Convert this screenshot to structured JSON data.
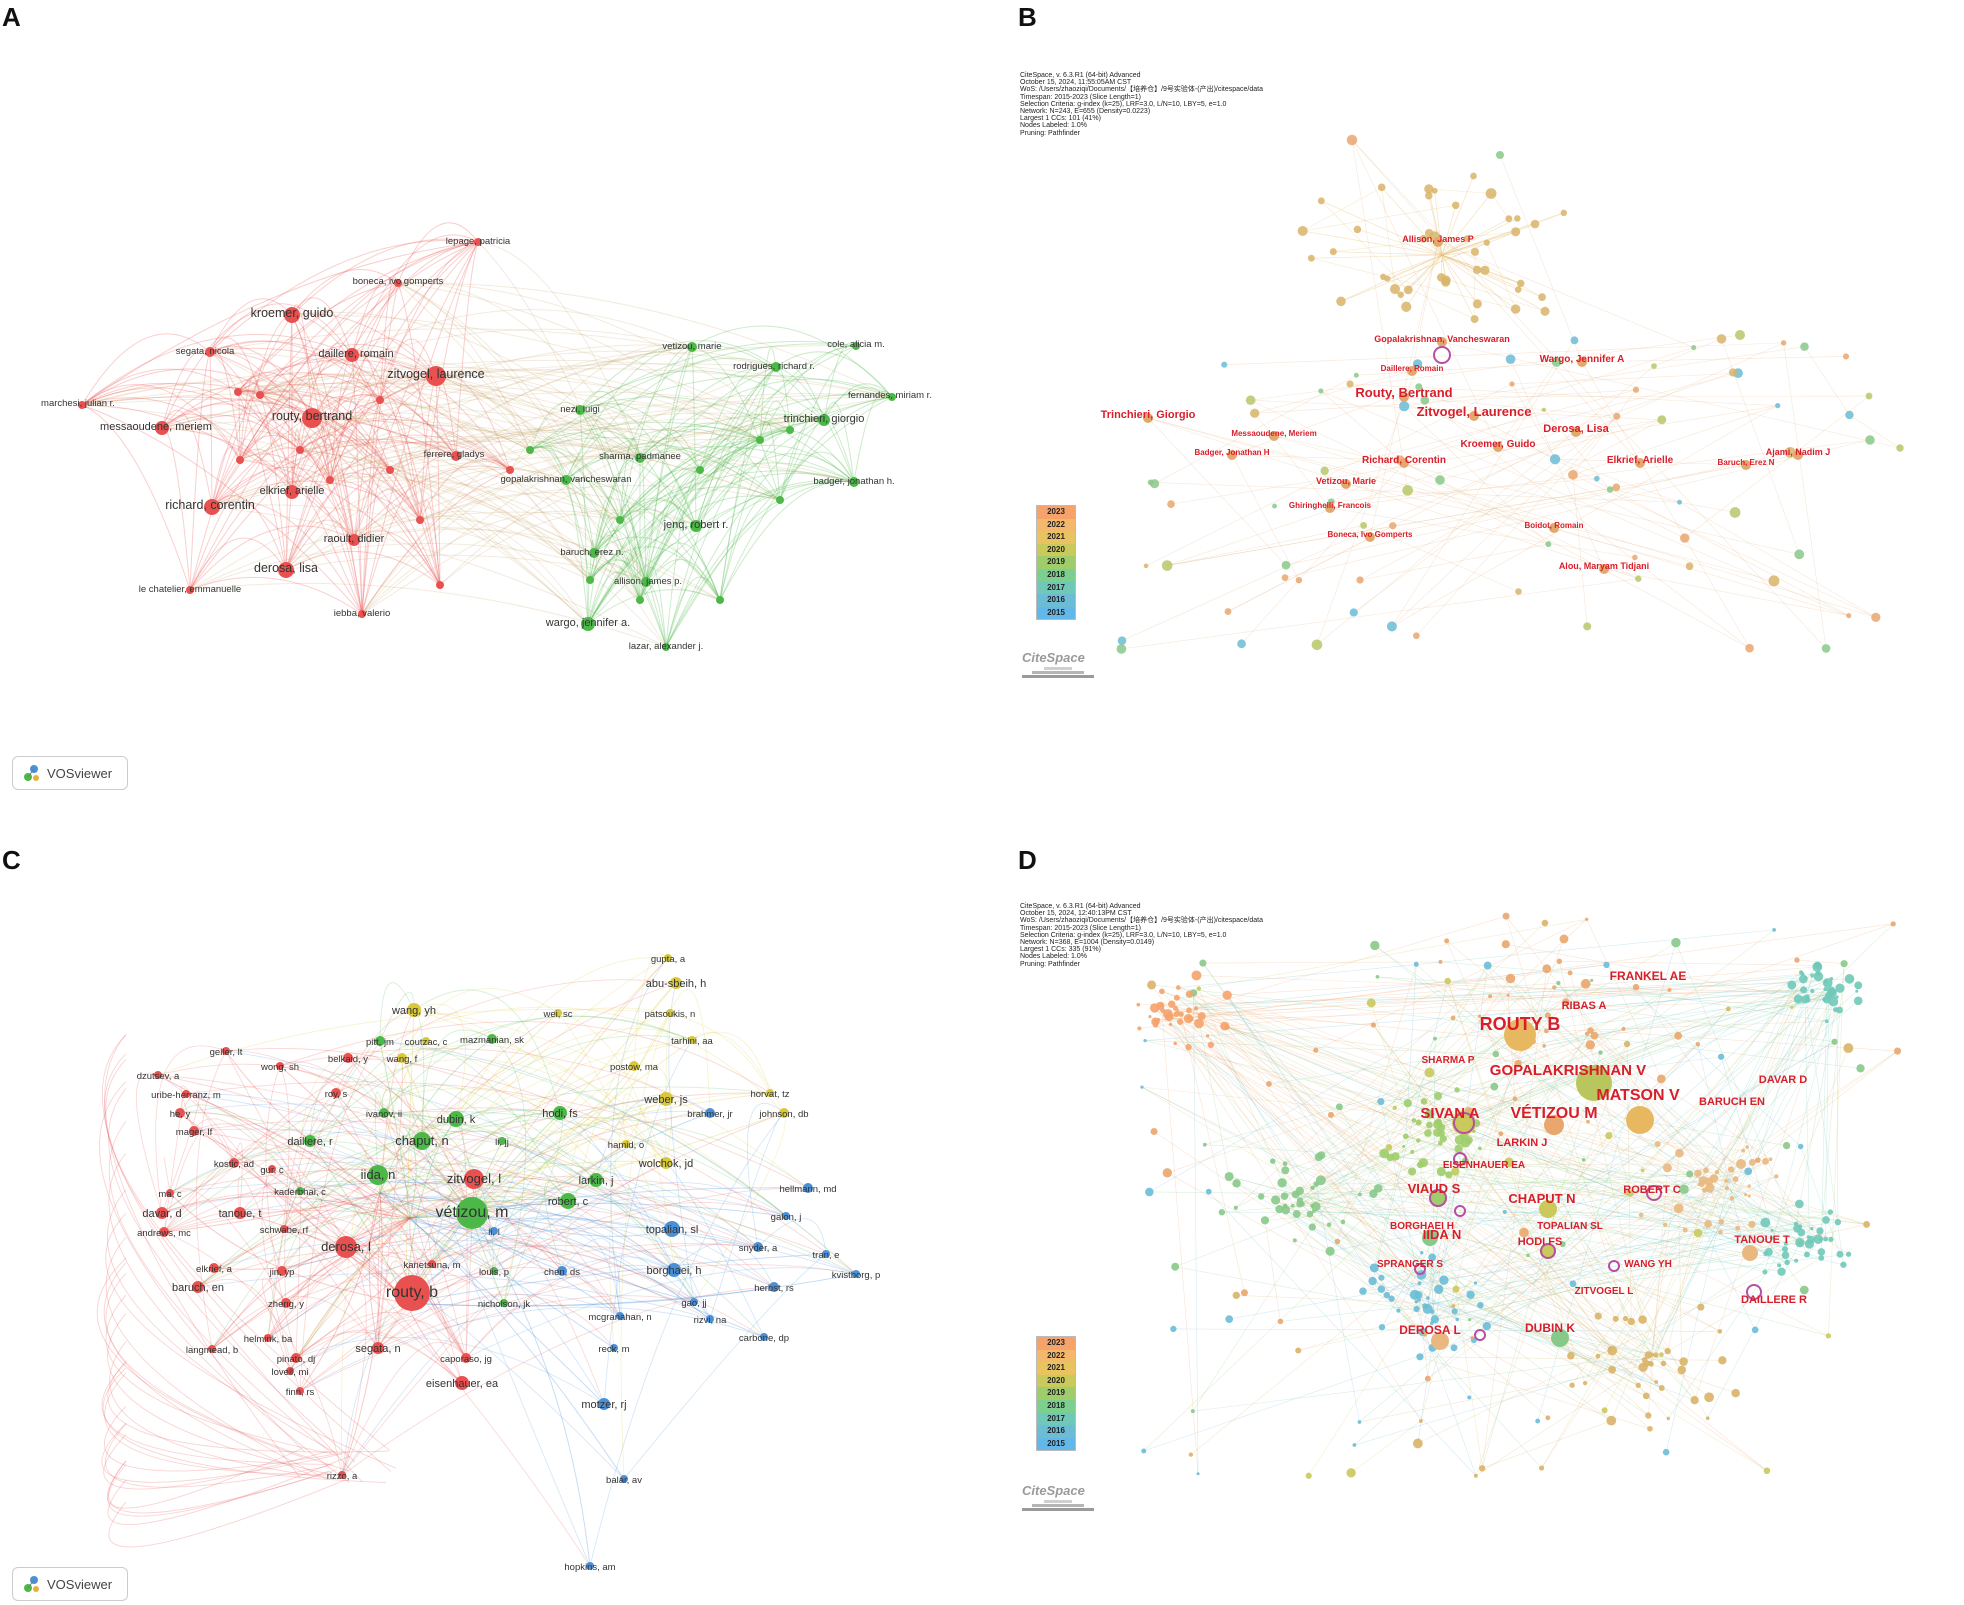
{
  "panels": {
    "A": {
      "letter": "A"
    },
    "B": {
      "letter": "B"
    },
    "C": {
      "letter": "C"
    },
    "D": {
      "letter": "D"
    }
  },
  "vosviewer_label": "VOSviewer",
  "citespace_label": "CiteSpace",
  "legend_years": [
    "2023",
    "2022",
    "2021",
    "2020",
    "2019",
    "2018",
    "2017",
    "2016",
    "2015"
  ],
  "legend_colors": [
    "#f5a36b",
    "#f4b86c",
    "#e8c460",
    "#c9c95c",
    "#9fcd6c",
    "#7ccf8e",
    "#70c9b8",
    "#6cbcd6",
    "#62b8e8"
  ],
  "colors": {
    "vos_red": "#e8514f",
    "vos_green": "#4cb848",
    "vos_blue": "#4a90d9",
    "vos_yellow": "#d9c93a",
    "cs_label": "#d81e2a"
  },
  "metaB": [
    "CiteSpace, v. 6.3.R1 (64-bit) Advanced",
    "October 15, 2024, 11:55:05AM CST",
    "WoS: /Users/zhaoziqi/Documents/【培养仓】/9号实验体-(产出)/citespace/data",
    "Timespan: 2015-2023 (Slice Length=1)",
    "Selection Criteria: g-index (k=25), LRF=3.0, L/N=10, LBY=5, e=1.0",
    "Network: N=243, E=655 (Density=0.0223)",
    "Largest 1 CCs: 101 (41%)",
    "Nodes Labeled: 1.0%",
    "Pruning: Pathfinder"
  ],
  "metaD": [
    "CiteSpace, v. 6.3.R1 (64-bit) Advanced",
    "October 15, 2024, 12:40:13PM CST",
    "WoS: /Users/zhaoziqi/Documents/【培养仓】/9号实验体-(产出)/citespace/data",
    "Timespan: 2015-2023 (Slice Length=1)",
    "Selection Criteria: g-index (k=25), LRF=3.0, L/N=10, LBY=5, e=1.0",
    "Network: N=368, E=1004 (Density=0.0149)",
    "Largest 1 CCs: 335 (91%)",
    "Nodes Labeled: 1.0%",
    "Pruning: Pathfinder"
  ],
  "A_nodes": [
    {
      "label": "lepage, patricia",
      "c": "r",
      "s": 4
    },
    {
      "label": "boneca, ivo gomperts",
      "c": "r",
      "s": 4
    },
    {
      "label": "kroemer, guido",
      "c": "r",
      "s": 8
    },
    {
      "label": "segata, nicola",
      "c": "r",
      "s": 5
    },
    {
      "label": "daillere, romain",
      "c": "r",
      "s": 7
    },
    {
      "label": "zitvogel, laurence",
      "c": "r",
      "s": 10
    },
    {
      "label": "marchesi, julian r.",
      "c": "r",
      "s": 4
    },
    {
      "label": "messaoudene, meriem",
      "c": "r",
      "s": 7
    },
    {
      "label": "routy, bertrand",
      "c": "r",
      "s": 10
    },
    {
      "label": "ferrere, gladys",
      "c": "r",
      "s": 5
    },
    {
      "label": "richard, corentin",
      "c": "r",
      "s": 8
    },
    {
      "label": "elkrief, arielle",
      "c": "r",
      "s": 7
    },
    {
      "label": "raoult, didier",
      "c": "r",
      "s": 6
    },
    {
      "label": "derosa, lisa",
      "c": "r",
      "s": 8
    },
    {
      "label": "le chatelier, emmanuelle",
      "c": "r",
      "s": 4
    },
    {
      "label": "iebba, valerio",
      "c": "r",
      "s": 4
    },
    {
      "label": "vetizou, marie",
      "c": "g",
      "s": 5
    },
    {
      "label": "cole, alicia m.",
      "c": "g",
      "s": 4
    },
    {
      "label": "rodrigues, richard r.",
      "c": "g",
      "s": 5
    },
    {
      "label": "fernandes, miriam r.",
      "c": "g",
      "s": 4
    },
    {
      "label": "nezi, luigi",
      "c": "g",
      "s": 5
    },
    {
      "label": "trinchieri, giorgio",
      "c": "g",
      "s": 6
    },
    {
      "label": "sharma, padmanee",
      "c": "g",
      "s": 5
    },
    {
      "label": "gopalakrishnan, vancheswaran",
      "c": "g",
      "s": 5
    },
    {
      "label": "badger, jonathan h.",
      "c": "g",
      "s": 5
    },
    {
      "label": "jenq, robert r.",
      "c": "g",
      "s": 6
    },
    {
      "label": "baruch, erez n.",
      "c": "g",
      "s": 5
    },
    {
      "label": "allison, james p.",
      "c": "g",
      "s": 5
    },
    {
      "label": "wargo, jennifer a.",
      "c": "g",
      "s": 7
    },
    {
      "label": "lazar, alexander j.",
      "c": "g",
      "s": 4
    }
  ],
  "B_labels": [
    {
      "label": "Allison, James P",
      "fs": 9
    },
    {
      "label": "Gopalakrishnan, Vancheswaran",
      "fs": 9
    },
    {
      "label": "Daillere, Romain",
      "fs": 8
    },
    {
      "label": "Wargo, Jennifer A",
      "fs": 10
    },
    {
      "label": "Routy, Bertrand",
      "fs": 13
    },
    {
      "label": "Zitvogel, Laurence",
      "fs": 13
    },
    {
      "label": "Trinchieri, Giorgio",
      "fs": 11
    },
    {
      "label": "Messaoudene, Meriem",
      "fs": 8
    },
    {
      "label": "Derosa, Lisa",
      "fs": 11
    },
    {
      "label": "Kroemer, Guido",
      "fs": 10
    },
    {
      "label": "Badger, Jonathan H",
      "fs": 8
    },
    {
      "label": "Richard, Corentin",
      "fs": 10
    },
    {
      "label": "Elkrief, Arielle",
      "fs": 10
    },
    {
      "label": "Ajami, Nadim J",
      "fs": 9
    },
    {
      "label": "Baruch, Erez N",
      "fs": 8
    },
    {
      "label": "Vetizou, Marie",
      "fs": 9
    },
    {
      "label": "Ghiringhelli, Francois",
      "fs": 8
    },
    {
      "label": "Boidot, Romain",
      "fs": 8
    },
    {
      "label": "Boneca, Ivo Gomperts",
      "fs": 8
    },
    {
      "label": "Alou, Maryam Tidjani",
      "fs": 9
    }
  ],
  "C_nodes": [
    {
      "label": "gupta, a",
      "c": "y",
      "s": 4
    },
    {
      "label": "abu-sbeih, h",
      "c": "y",
      "s": 6
    },
    {
      "label": "patsoukis, n",
      "c": "y",
      "s": 4
    },
    {
      "label": "wang, yh",
      "c": "y",
      "s": 7
    },
    {
      "label": "wei, sc",
      "c": "y",
      "s": 4
    },
    {
      "label": "tarhini, aa",
      "c": "y",
      "s": 4
    },
    {
      "label": "pitt, jm",
      "c": "g",
      "s": 5
    },
    {
      "label": "coutzac, c",
      "c": "y",
      "s": 4
    },
    {
      "label": "mazmanian, sk",
      "c": "g",
      "s": 5
    },
    {
      "label": "geller, lt",
      "c": "r",
      "s": 4
    },
    {
      "label": "belkaid, y",
      "c": "r",
      "s": 5
    },
    {
      "label": "wang, f",
      "c": "y",
      "s": 5
    },
    {
      "label": "wong, sh",
      "c": "r",
      "s": 4
    },
    {
      "label": "postow, ma",
      "c": "y",
      "s": 5
    },
    {
      "label": "dzutsev, a",
      "c": "r",
      "s": 4
    },
    {
      "label": "roy, s",
      "c": "r",
      "s": 5
    },
    {
      "label": "horvat, tz",
      "c": "y",
      "s": 4
    },
    {
      "label": "weber, js",
      "c": "y",
      "s": 7
    },
    {
      "label": "uribe-herranz, m",
      "c": "r",
      "s": 4
    },
    {
      "label": "hodi, fs",
      "c": "g",
      "s": 7
    },
    {
      "label": "he, y",
      "c": "r",
      "s": 5
    },
    {
      "label": "ivanov, ii",
      "c": "g",
      "s": 5
    },
    {
      "label": "dubin, k",
      "c": "g",
      "s": 8
    },
    {
      "label": "brahmer, jr",
      "c": "b",
      "s": 5
    },
    {
      "label": "johnson, db",
      "c": "y",
      "s": 5
    },
    {
      "label": "mager, lf",
      "c": "r",
      "s": 5
    },
    {
      "label": "daillere, r",
      "c": "g",
      "s": 6
    },
    {
      "label": "chaput, n",
      "c": "g",
      "s": 9
    },
    {
      "label": "li, jj",
      "c": "g",
      "s": 4
    },
    {
      "label": "hamid, o",
      "c": "y",
      "s": 4
    },
    {
      "label": "wolchok, jd",
      "c": "y",
      "s": 6
    },
    {
      "label": "kostic, ad",
      "c": "r",
      "s": 5
    },
    {
      "label": "gur, c",
      "c": "r",
      "s": 4
    },
    {
      "label": "iida, n",
      "c": "g",
      "s": 10
    },
    {
      "label": "zitvogel, l",
      "c": "r",
      "s": 10
    },
    {
      "label": "larkin, j",
      "c": "g",
      "s": 7
    },
    {
      "label": "hellmann, md",
      "c": "b",
      "s": 5
    },
    {
      "label": "ma, c",
      "c": "r",
      "s": 4
    },
    {
      "label": "kaderbhai, c",
      "c": "g",
      "s": 4
    },
    {
      "label": "robert, c",
      "c": "g",
      "s": 8
    },
    {
      "label": "davar, d",
      "c": "r",
      "s": 6
    },
    {
      "label": "tanoue, t",
      "c": "r",
      "s": 6
    },
    {
      "label": "vétizou, m",
      "c": "g",
      "s": 16
    },
    {
      "label": "galon, j",
      "c": "b",
      "s": 4
    },
    {
      "label": "andrews, mc",
      "c": "r",
      "s": 5
    },
    {
      "label": "schwabe, rf",
      "c": "r",
      "s": 4
    },
    {
      "label": "li, l",
      "c": "b",
      "s": 4
    },
    {
      "label": "topalian, sl",
      "c": "b",
      "s": 8
    },
    {
      "label": "derosa, l",
      "c": "r",
      "s": 11
    },
    {
      "label": "snyder, a",
      "c": "b",
      "s": 5
    },
    {
      "label": "tran, e",
      "c": "b",
      "s": 4
    },
    {
      "label": "kanetsuna, m",
      "c": "r",
      "s": 4
    },
    {
      "label": "elkrief, a",
      "c": "r",
      "s": 5
    },
    {
      "label": "jin, yp",
      "c": "r",
      "s": 5
    },
    {
      "label": "louis, p",
      "c": "g",
      "s": 4
    },
    {
      "label": "chen, ds",
      "c": "b",
      "s": 5
    },
    {
      "label": "borghaei, h",
      "c": "b",
      "s": 7
    },
    {
      "label": "kvistborg, p",
      "c": "b",
      "s": 4
    },
    {
      "label": "baruch, en",
      "c": "r",
      "s": 6
    },
    {
      "label": "herbst, rs",
      "c": "b",
      "s": 5
    },
    {
      "label": "zheng, y",
      "c": "r",
      "s": 5
    },
    {
      "label": "routy, b",
      "c": "r",
      "s": 18
    },
    {
      "label": "nicholson, jk",
      "c": "g",
      "s": 4
    },
    {
      "label": "gao, jj",
      "c": "b",
      "s": 4
    },
    {
      "label": "mcgranahan, n",
      "c": "b",
      "s": 4
    },
    {
      "label": "rizvi, na",
      "c": "b",
      "s": 4
    },
    {
      "label": "helmink, ba",
      "c": "r",
      "s": 4
    },
    {
      "label": "carbone, dp",
      "c": "b",
      "s": 4
    },
    {
      "label": "reck, m",
      "c": "b",
      "s": 4
    },
    {
      "label": "langmead, b",
      "c": "r",
      "s": 4
    },
    {
      "label": "pinato, dj",
      "c": "r",
      "s": 5
    },
    {
      "label": "segata, n",
      "c": "r",
      "s": 6
    },
    {
      "label": "caporaso, jg",
      "c": "r",
      "s": 5
    },
    {
      "label": "lovell, mi",
      "c": "r",
      "s": 4
    },
    {
      "label": "eisenhauer, ea",
      "c": "r",
      "s": 7
    },
    {
      "label": "finn, rs",
      "c": "r",
      "s": 4
    },
    {
      "label": "motzer, rj",
      "c": "b",
      "s": 6
    },
    {
      "label": "rizzo, a",
      "c": "r",
      "s": 4
    },
    {
      "label": "balar, av",
      "c": "b",
      "s": 4
    },
    {
      "label": "hopkins, am",
      "c": "b",
      "s": 4
    }
  ],
  "D_labels": [
    {
      "label": "FRANKEL AE",
      "fs": 12
    },
    {
      "label": "RIBAS A",
      "fs": 11
    },
    {
      "label": "ROUTY B",
      "fs": 18
    },
    {
      "label": "SHARMA P",
      "fs": 10
    },
    {
      "label": "GOPALAKRISHNAN V",
      "fs": 15
    },
    {
      "label": "DAVAR D",
      "fs": 11
    },
    {
      "label": "MATSON V",
      "fs": 16
    },
    {
      "label": "BARUCH EN",
      "fs": 11
    },
    {
      "label": "SIVAN A",
      "fs": 15
    },
    {
      "label": "VÉTIZOU M",
      "fs": 16
    },
    {
      "label": "LARKIN J",
      "fs": 11
    },
    {
      "label": "EISENHAUER EA",
      "fs": 10
    },
    {
      "label": "ROBERT C",
      "fs": 11
    },
    {
      "label": "VIAUD S",
      "fs": 13
    },
    {
      "label": "CHAPUT N",
      "fs": 13
    },
    {
      "label": "BORGHAEI H",
      "fs": 10
    },
    {
      "label": "TOPALIAN SL",
      "fs": 10
    },
    {
      "label": "IIDA N",
      "fs": 13
    },
    {
      "label": "HODI FS",
      "fs": 11
    },
    {
      "label": "TANOUE T",
      "fs": 11
    },
    {
      "label": "SPRANGER S",
      "fs": 10
    },
    {
      "label": "WANG YH",
      "fs": 10
    },
    {
      "label": "ZITVOGEL L",
      "fs": 10
    },
    {
      "label": "DAILLERE R",
      "fs": 11
    },
    {
      "label": "DUBIN K",
      "fs": 12
    },
    {
      "label": "DEROSA L",
      "fs": 12
    }
  ]
}
